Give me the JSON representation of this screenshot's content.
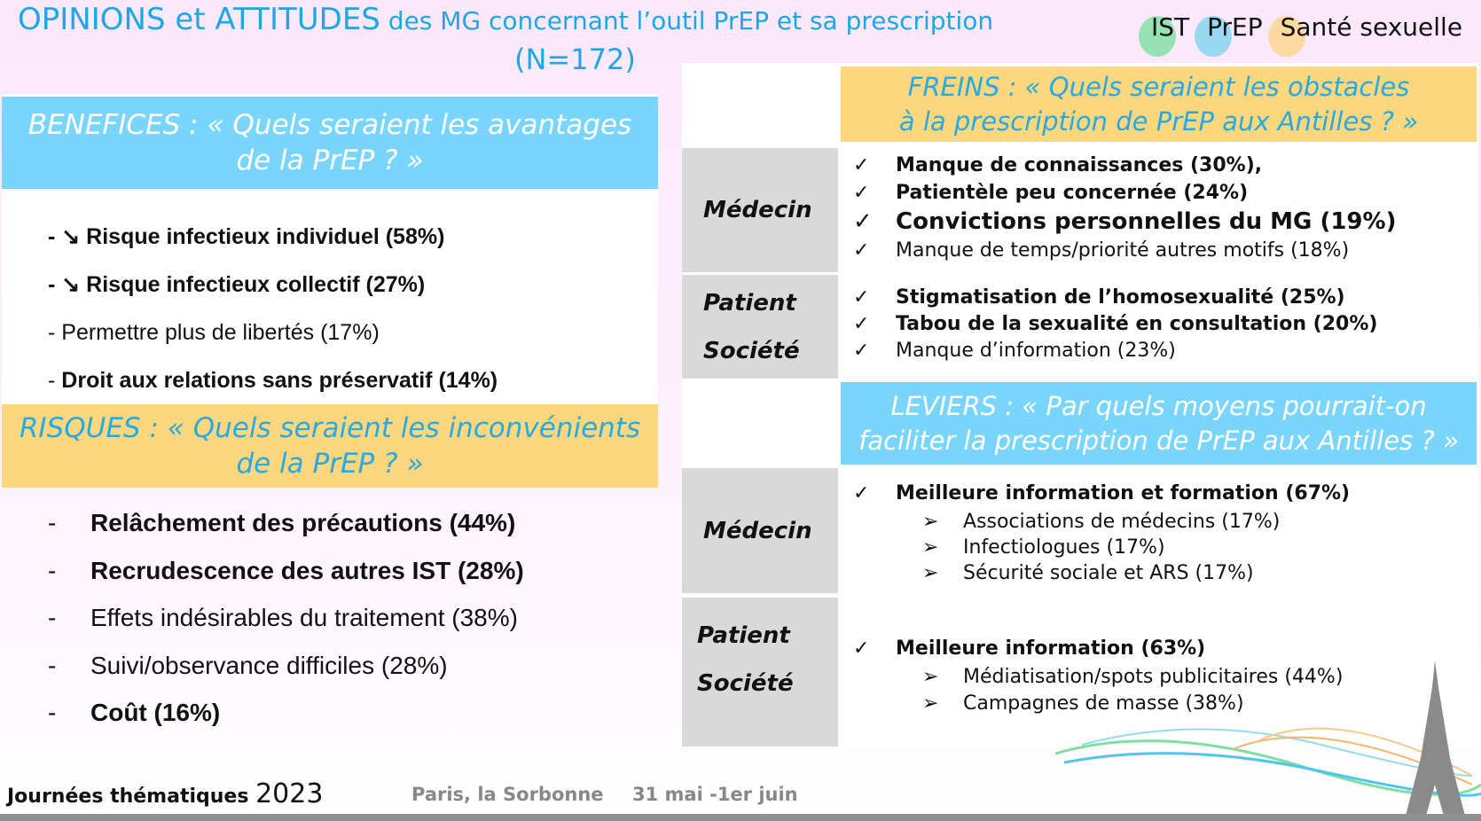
{
  "header": {
    "title_big": "OPINIONS et ATTITUDES",
    "title_small": " des MG concernant l’outil PrEP et sa prescription",
    "n": "(N=172)",
    "logos": [
      {
        "label": "IST",
        "color": "#7ee0a0"
      },
      {
        "label": "PrEP",
        "color": "#7fd3ee"
      },
      {
        "label": "Santé sexuelle",
        "color": "#fcd48a"
      }
    ]
  },
  "benefices": {
    "head": "BENEFICES :",
    "question_1": " « Quels seraient les avantages",
    "question_2": "de la PrEP ? »",
    "items": [
      {
        "prefix": "- ↘ ",
        "text": "Risque infectieux individuel (58%)",
        "bold": true
      },
      {
        "prefix": "- ↘ ",
        "text": "Risque infectieux collectif (27%)",
        "bold": true
      },
      {
        "prefix": "-  ",
        "text": "Permettre plus de libertés (17%)",
        "bold": false
      },
      {
        "prefix": "-  ",
        "text": "Droit aux relations sans préservatif (14%)",
        "bold": true
      }
    ]
  },
  "risques": {
    "head": "RISQUES :",
    "question_1": " « Quels seraient les inconvénients",
    "question_2": "de la PrEP ? »",
    "items": [
      {
        "prefix": "-",
        "text": "Relâchement des précautions (44%)",
        "bold": true
      },
      {
        "prefix": "-",
        "text": "Recrudescence des autres IST (28%)",
        "bold": true
      },
      {
        "prefix": "-",
        "text": "Effets indésirables du traitement (38%)",
        "bold": false
      },
      {
        "prefix": "-",
        "text": "Suivi/observance difficiles (28%)",
        "bold": false
      },
      {
        "prefix": "-",
        "text": "Coût (16%)",
        "bold": true
      }
    ]
  },
  "freins": {
    "head": "FREINS :",
    "question_1": " « Quels seraient les obstacles",
    "question_2": "à la prescription de PrEP aux Antilles ? »",
    "medecin": {
      "label": "Médecin",
      "items": [
        "Manque de connaissances (30%),",
        "Patientèle peu concernée (24%)",
        "Convictions personnelles du MG (19%)",
        "Manque de temps/priorité autres motifs (18%)"
      ]
    },
    "patient": {
      "label_1": "Patient",
      "label_2": "Société",
      "items": [
        "Stigmatisation de l’homosexualité (25%)",
        "Tabou de la sexualité en consultation (20%)",
        "Manque d’information (23%)"
      ]
    }
  },
  "leviers": {
    "head": "LEVIERS :",
    "question_1": " « Par quels moyens pourrait-on",
    "question_2": "faciliter la prescription de PrEP aux Antilles ? »",
    "medecin": {
      "label": "Médecin",
      "main": "Meilleure information et formation (67%)",
      "subs": [
        "Associations de médecins (17%)",
        "Infectiologues (17%)",
        "Sécurité sociale et ARS (17%)"
      ]
    },
    "patient": {
      "label_1": "Patient",
      "label_2": "Société",
      "main": "Meilleure information (63%)",
      "subs": [
        "Médiatisation/spots publicitaires (44%)",
        "Campagnes de masse (38%)"
      ]
    }
  },
  "symbols": {
    "check": "✓",
    "arrow": "➢"
  },
  "footer": {
    "event": "Journées thématiques",
    "year": "2023",
    "place": "Paris, la Sorbonne",
    "dates": "31 mai -1er juin"
  }
}
